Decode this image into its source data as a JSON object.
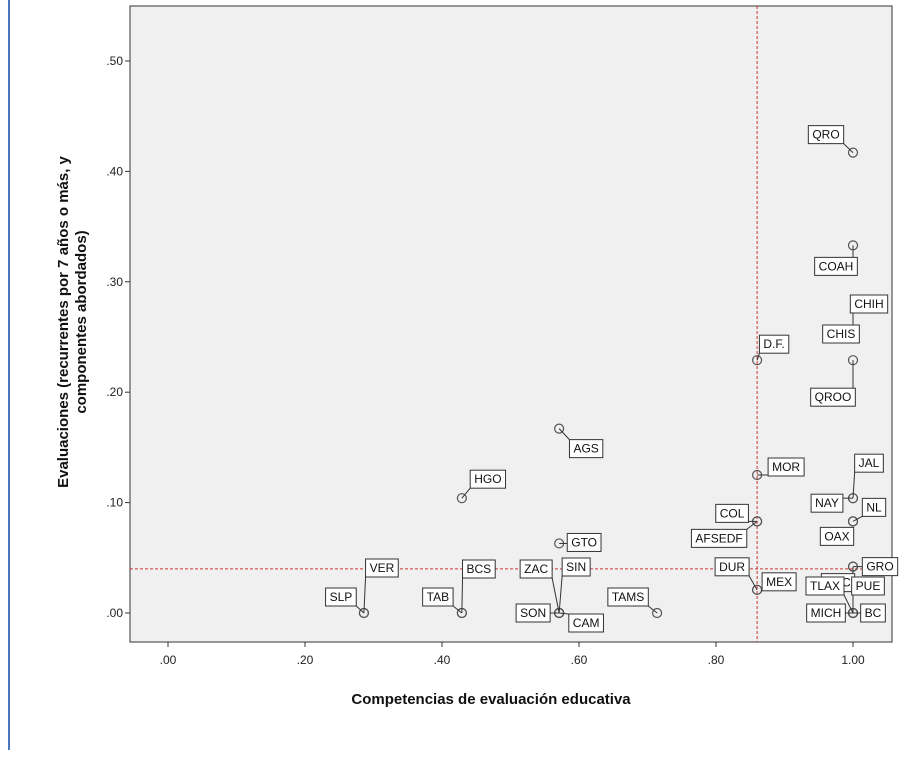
{
  "chart_data": {
    "type": "scatter",
    "xlabel": "Competencias de evaluación educativa",
    "ylabel_line1": "Evaluaciones (recurrentes por 7 años o más, y",
    "ylabel_line2": "componentes abordados)",
    "xlim": [
      -0.05,
      1.06
    ],
    "ylim": [
      -0.03,
      0.55
    ],
    "x_ticks": [
      0.0,
      0.2,
      0.4,
      0.6,
      0.8,
      1.0
    ],
    "x_tick_labels": [
      ".00",
      ".20",
      ".40",
      ".60",
      ".80",
      "1.00"
    ],
    "y_ticks": [
      0.0,
      0.1,
      0.2,
      0.3,
      0.4,
      0.5
    ],
    "y_tick_labels": [
      ".00",
      ".10",
      ".20",
      ".30",
      ".40",
      ".50"
    ],
    "reference_lines": {
      "x": 0.86,
      "y": 0.04,
      "style": "dashed",
      "color": "#cc3333"
    },
    "grid": false,
    "plot_background": "#f0f0f0",
    "point_color": "#555555",
    "points": [
      {
        "label": "QRO",
        "x": 1.0,
        "y": 0.417
      },
      {
        "label": "COAH",
        "x": 1.0,
        "y": 0.333
      },
      {
        "label": "CHIH",
        "x": 1.0,
        "y": 0.25
      },
      {
        "label": "CHIS",
        "x": 1.0,
        "y": 0.25
      },
      {
        "label": "QROO",
        "x": 1.0,
        "y": 0.229
      },
      {
        "label": "D.F.",
        "x": 0.86,
        "y": 0.229
      },
      {
        "label": "AGS",
        "x": 0.571,
        "y": 0.167
      },
      {
        "label": "JAL",
        "x": 1.0,
        "y": 0.104
      },
      {
        "label": "NAY",
        "x": 1.0,
        "y": 0.104
      },
      {
        "label": "NL",
        "x": 1.0,
        "y": 0.083
      },
      {
        "label": "OAX",
        "x": 1.0,
        "y": 0.083
      },
      {
        "label": "GRO",
        "x": 1.0,
        "y": 0.042
      },
      {
        "label": "YUC",
        "x": 1.0,
        "y": 0.042
      },
      {
        "label": "TLAX",
        "x": 1.0,
        "y": 0.0
      },
      {
        "label": "PUE",
        "x": 1.0,
        "y": 0.0
      },
      {
        "label": "MICH",
        "x": 1.0,
        "y": 0.0
      },
      {
        "label": "BC",
        "x": 1.0,
        "y": 0.0
      },
      {
        "label": "MOR",
        "x": 0.86,
        "y": 0.125
      },
      {
        "label": "COL",
        "x": 0.86,
        "y": 0.083
      },
      {
        "label": "AFSEDF",
        "x": 0.86,
        "y": 0.083
      },
      {
        "label": "DUR",
        "x": 0.86,
        "y": 0.021
      },
      {
        "label": "MEX",
        "x": 0.86,
        "y": 0.021
      },
      {
        "label": "HGO",
        "x": 0.429,
        "y": 0.104
      },
      {
        "label": "GTO",
        "x": 0.571,
        "y": 0.063
      },
      {
        "label": "VER",
        "x": 0.286,
        "y": 0.0
      },
      {
        "label": "SLP",
        "x": 0.286,
        "y": 0.0
      },
      {
        "label": "TAB",
        "x": 0.429,
        "y": 0.0
      },
      {
        "label": "BCS",
        "x": 0.429,
        "y": 0.0
      },
      {
        "label": "ZAC",
        "x": 0.571,
        "y": 0.0
      },
      {
        "label": "SIN",
        "x": 0.571,
        "y": 0.0
      },
      {
        "label": "SON",
        "x": 0.571,
        "y": 0.0
      },
      {
        "label": "CAM",
        "x": 0.571,
        "y": 0.0
      },
      {
        "label": "TAMS",
        "x": 0.714,
        "y": 0.0
      }
    ]
  }
}
